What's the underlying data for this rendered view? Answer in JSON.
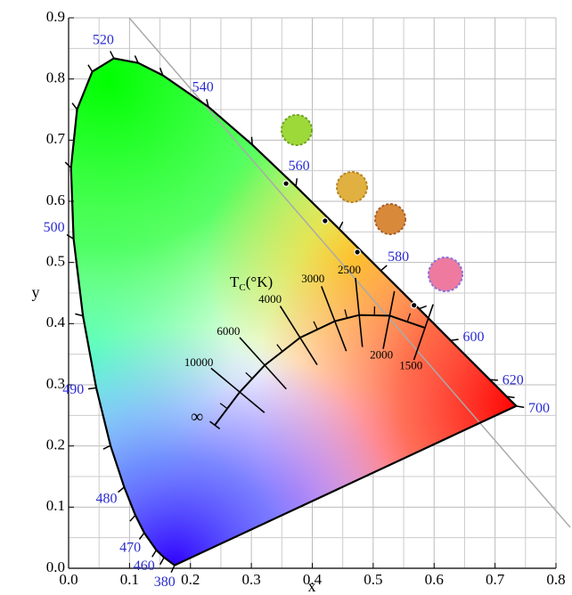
{
  "chart_data": {
    "type": "chromaticity",
    "xlabel": "x",
    "ylabel": "y",
    "xlim": [
      0,
      0.8
    ],
    "ylim": [
      0,
      0.9
    ],
    "xticks": [
      {
        "value": 0,
        "label": "0.0"
      },
      0.1,
      0.2,
      0.3,
      0.4,
      0.5,
      0.6,
      0.7,
      0.8
    ],
    "yticks": [
      {
        "value": 0,
        "label": "0.0"
      },
      0.1,
      0.2,
      0.3,
      0.4,
      0.5,
      0.6,
      0.7,
      0.8,
      0.9
    ],
    "xminorticks": [
      0.05,
      0.15,
      0.25,
      0.35,
      0.45,
      0.55,
      0.65,
      0.75
    ],
    "yminorticks": [
      0.05,
      0.15,
      0.25,
      0.35,
      0.45,
      0.55,
      0.65,
      0.75,
      0.85
    ],
    "grid": true,
    "spectral_locus": {
      "color": "#000000",
      "x": [
        0.1741,
        0.1566,
        0.144,
        0.1241,
        0.1096,
        0.0913,
        0.0687,
        0.0454,
        0.0235,
        0.0082,
        0.0039,
        0.0139,
        0.0389,
        0.0743,
        0.1142,
        0.1547,
        0.2296,
        0.3016,
        0.3731,
        0.4441,
        0.5125,
        0.5752,
        0.627,
        0.6915,
        0.719,
        0.7347
      ],
      "y": [
        0.005,
        0.0177,
        0.0297,
        0.0578,
        0.0868,
        0.1327,
        0.2007,
        0.295,
        0.4127,
        0.5384,
        0.6548,
        0.7502,
        0.812,
        0.8338,
        0.8262,
        0.8059,
        0.7543,
        0.6923,
        0.6245,
        0.5547,
        0.4866,
        0.4242,
        0.3725,
        0.3083,
        0.2809,
        0.2653
      ]
    },
    "wavelength_labels": {
      "color": "#2b2bd0",
      "labels": [
        "380",
        "460",
        "470",
        "480",
        "490",
        "500",
        "520",
        "540",
        "560",
        "580",
        "600",
        "620",
        "700"
      ],
      "x": [
        0.1741,
        0.144,
        0.1241,
        0.0913,
        0.0454,
        0.0082,
        0.0743,
        0.2296,
        0.3731,
        0.5125,
        0.627,
        0.6915,
        0.7347
      ],
      "y": [
        0.005,
        0.0297,
        0.0578,
        0.1327,
        0.295,
        0.5384,
        0.8338,
        0.7543,
        0.6245,
        0.4866,
        0.3725,
        0.3083,
        0.2653
      ]
    },
    "planckian_locus": {
      "title": {
        "main": "T",
        "subscript": "C",
        "unit": "(°K)"
      },
      "color": "#000000",
      "labels": [
        "1500",
        "2000",
        "2500",
        "3000",
        "4000",
        "6000",
        "10000",
        "∞"
      ],
      "x": [
        0.585,
        0.527,
        0.477,
        0.437,
        0.38,
        0.322,
        0.281,
        0.24
      ],
      "y": [
        0.393,
        0.413,
        0.414,
        0.404,
        0.377,
        0.332,
        0.288,
        0.234
      ]
    },
    "samples": {
      "x": [
        0.357,
        0.421,
        0.474,
        0.567
      ],
      "y": [
        0.629,
        0.568,
        0.517,
        0.43
      ]
    }
  }
}
